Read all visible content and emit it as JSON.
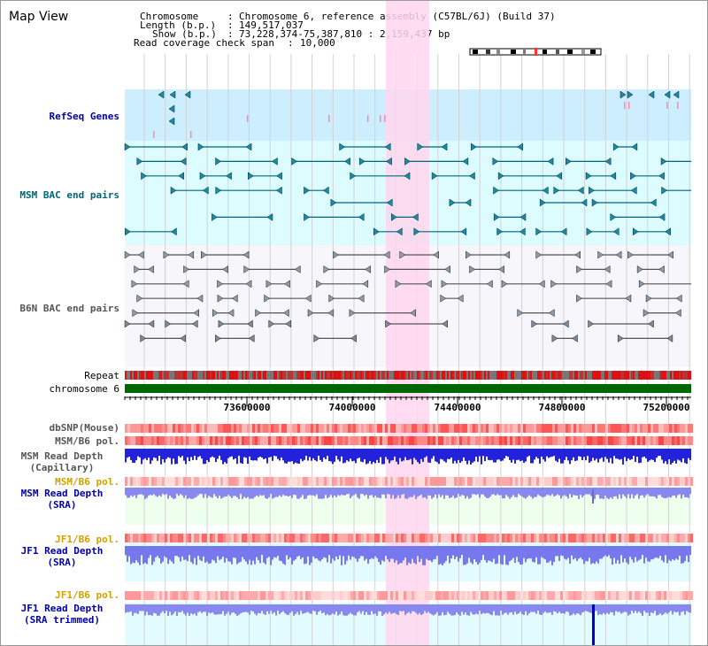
{
  "title": "Map View",
  "info": {
    "chromosome_label": "Chromosome",
    "chromosome_value": "Chromosome 6, reference assembly (C57BL/6J) (Build 37)",
    "length_label": "Length (b.p.)",
    "length_value": "149,517,037",
    "show_label": "Show (b.p.)",
    "show_value": "73,228,374-75,387,810 : 2,159,437 bp",
    "span_label": "Read coverage check span",
    "span_value": "10,000"
  },
  "tracks": {
    "refseq": "RefSeq Genes",
    "msm_bac": "MSM BAC end pairs",
    "b6n_bac": "B6N BAC end pairs",
    "repeat": "Repeat",
    "chromosome": "chromosome 6",
    "dbsnp": "dbSNP(Mouse)",
    "msm_b6_pol_1": "MSM/B6 pol.",
    "msm_depth_cap_1": "MSM Read Depth",
    "msm_depth_cap_2": "(Capillary)",
    "msm_b6_pol_2": "MSM/B6 pol.",
    "msm_depth_sra_1": "MSM Read Depth",
    "msm_depth_sra_2": "(SRA)",
    "jf1_b6_pol_1": "JF1/B6 pol.",
    "jf1_depth_sra_1": "JF1 Read Depth",
    "jf1_depth_sra_2": "(SRA)",
    "jf1_b6_pol_2": "JF1/B6 pol.",
    "jf1_depth_trim_1": "JF1 Read Depth",
    "jf1_depth_trim_2": "(SRA trimmed)"
  },
  "axis": {
    "ticks": [
      "73600000",
      "74000000",
      "74400000",
      "74800000",
      "75200000"
    ]
  },
  "colors": {
    "label_blue": "#0000aa",
    "label_teal": "#006677",
    "label_gray": "#555555",
    "label_orange": "#d4a000",
    "highlight": "#ffd6ee",
    "chromosome_green": "#006600"
  }
}
